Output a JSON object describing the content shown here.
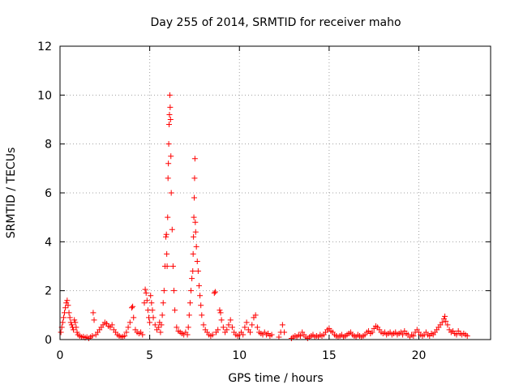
{
  "chart_data": {
    "type": "scatter",
    "title": "Day 255 of 2014, SRMTID for receiver maho",
    "xlabel": "GPS time / hours",
    "ylabel": "SRMTID / TECUs",
    "xlim": [
      0,
      24
    ],
    "ylim": [
      0,
      12
    ],
    "xticks": [
      0,
      5,
      10,
      15,
      20
    ],
    "xtick_labels": [
      "0",
      "5",
      "10",
      "15",
      "20"
    ],
    "yticks": [
      0,
      2,
      4,
      6,
      8,
      10,
      12
    ],
    "ytick_labels": [
      "0",
      "2",
      "4",
      "6",
      "8",
      "10",
      "12"
    ],
    "grid": true,
    "marker": "plus",
    "series": [
      {
        "name": "SRMTID",
        "color": "#ff0000",
        "points": [
          [
            0.05,
            0.3
          ],
          [
            0.1,
            0.5
          ],
          [
            0.15,
            0.7
          ],
          [
            0.2,
            0.9
          ],
          [
            0.25,
            1.1
          ],
          [
            0.3,
            1.3
          ],
          [
            0.35,
            1.5
          ],
          [
            0.4,
            1.6
          ],
          [
            0.45,
            1.4
          ],
          [
            0.5,
            1.1
          ],
          [
            0.55,
            0.9
          ],
          [
            0.6,
            0.7
          ],
          [
            0.65,
            0.6
          ],
          [
            0.7,
            0.5
          ],
          [
            0.75,
            0.4
          ],
          [
            0.8,
            0.8
          ],
          [
            0.85,
            0.7
          ],
          [
            0.9,
            0.5
          ],
          [
            0.95,
            0.3
          ],
          [
            1.0,
            0.2
          ],
          [
            1.1,
            0.15
          ],
          [
            1.2,
            0.1
          ],
          [
            1.3,
            0.12
          ],
          [
            1.4,
            0.08
          ],
          [
            1.5,
            0.1
          ],
          [
            1.6,
            0.05
          ],
          [
            1.7,
            0.1
          ],
          [
            1.8,
            0.15
          ],
          [
            1.85,
            1.1
          ],
          [
            1.9,
            0.8
          ],
          [
            2.0,
            0.2
          ],
          [
            2.1,
            0.3
          ],
          [
            2.2,
            0.4
          ],
          [
            2.3,
            0.5
          ],
          [
            2.4,
            0.6
          ],
          [
            2.5,
            0.7
          ],
          [
            2.6,
            0.65
          ],
          [
            2.7,
            0.55
          ],
          [
            2.8,
            0.5
          ],
          [
            2.9,
            0.6
          ],
          [
            3.0,
            0.4
          ],
          [
            3.1,
            0.3
          ],
          [
            3.2,
            0.2
          ],
          [
            3.3,
            0.15
          ],
          [
            3.4,
            0.1
          ],
          [
            3.5,
            0.12
          ],
          [
            3.6,
            0.15
          ],
          [
            3.7,
            0.3
          ],
          [
            3.8,
            0.5
          ],
          [
            3.9,
            0.7
          ],
          [
            4.0,
            1.3
          ],
          [
            4.05,
            1.35
          ],
          [
            4.1,
            0.9
          ],
          [
            4.2,
            0.4
          ],
          [
            4.3,
            0.3
          ],
          [
            4.4,
            0.25
          ],
          [
            4.5,
            0.3
          ],
          [
            4.6,
            0.2
          ],
          [
            4.7,
            1.5
          ],
          [
            4.75,
            2.05
          ],
          [
            4.8,
            1.9
          ],
          [
            4.85,
            1.6
          ],
          [
            4.9,
            1.2
          ],
          [
            4.95,
            0.9
          ],
          [
            5.0,
            0.7
          ],
          [
            5.05,
            1.8
          ],
          [
            5.1,
            1.5
          ],
          [
            5.15,
            1.2
          ],
          [
            5.2,
            0.9
          ],
          [
            5.3,
            0.6
          ],
          [
            5.4,
            0.4
          ],
          [
            5.5,
            0.5
          ],
          [
            5.55,
            0.7
          ],
          [
            5.6,
            0.3
          ],
          [
            5.65,
            0.6
          ],
          [
            5.7,
            1.0
          ],
          [
            5.75,
            1.5
          ],
          [
            5.8,
            2.0
          ],
          [
            5.85,
            3.0
          ],
          [
            5.9,
            4.2
          ],
          [
            5.93,
            4.3
          ],
          [
            5.95,
            3.5
          ],
          [
            5.97,
            3.0
          ],
          [
            6.0,
            5.0
          ],
          [
            6.02,
            6.6
          ],
          [
            6.04,
            7.2
          ],
          [
            6.06,
            8.0
          ],
          [
            6.08,
            8.8
          ],
          [
            6.1,
            9.2
          ],
          [
            6.12,
            10.0
          ],
          [
            6.14,
            9.5
          ],
          [
            6.16,
            9.0
          ],
          [
            6.18,
            7.5
          ],
          [
            6.2,
            6.0
          ],
          [
            6.25,
            4.5
          ],
          [
            6.3,
            3.0
          ],
          [
            6.35,
            2.0
          ],
          [
            6.4,
            1.2
          ],
          [
            6.5,
            0.5
          ],
          [
            6.6,
            0.35
          ],
          [
            6.7,
            0.3
          ],
          [
            6.8,
            0.25
          ],
          [
            6.9,
            0.2
          ],
          [
            7.0,
            0.3
          ],
          [
            7.1,
            0.2
          ],
          [
            7.15,
            0.5
          ],
          [
            7.2,
            1.0
          ],
          [
            7.25,
            1.5
          ],
          [
            7.3,
            2.0
          ],
          [
            7.35,
            2.5
          ],
          [
            7.4,
            2.8
          ],
          [
            7.42,
            3.5
          ],
          [
            7.44,
            4.2
          ],
          [
            7.46,
            5.0
          ],
          [
            7.48,
            5.8
          ],
          [
            7.5,
            6.6
          ],
          [
            7.52,
            7.4
          ],
          [
            7.54,
            4.8
          ],
          [
            7.56,
            4.4
          ],
          [
            7.6,
            3.8
          ],
          [
            7.65,
            3.2
          ],
          [
            7.7,
            2.8
          ],
          [
            7.75,
            2.2
          ],
          [
            7.8,
            1.8
          ],
          [
            7.85,
            1.4
          ],
          [
            7.9,
            1.0
          ],
          [
            8.0,
            0.6
          ],
          [
            8.1,
            0.4
          ],
          [
            8.2,
            0.3
          ],
          [
            8.3,
            0.2
          ],
          [
            8.4,
            0.15
          ],
          [
            8.5,
            0.2
          ],
          [
            8.6,
            1.9
          ],
          [
            8.65,
            1.95
          ],
          [
            8.7,
            0.3
          ],
          [
            8.8,
            0.4
          ],
          [
            8.9,
            1.2
          ],
          [
            8.95,
            1.1
          ],
          [
            9.0,
            0.8
          ],
          [
            9.1,
            0.5
          ],
          [
            9.2,
            0.3
          ],
          [
            9.3,
            0.4
          ],
          [
            9.4,
            0.6
          ],
          [
            9.5,
            0.8
          ],
          [
            9.6,
            0.5
          ],
          [
            9.7,
            0.3
          ],
          [
            9.8,
            0.2
          ],
          [
            9.9,
            0.15
          ],
          [
            10.0,
            0.2
          ],
          [
            10.1,
            0.3
          ],
          [
            10.2,
            0.2
          ],
          [
            10.3,
            0.5
          ],
          [
            10.4,
            0.7
          ],
          [
            10.5,
            0.4
          ],
          [
            10.6,
            0.3
          ],
          [
            10.7,
            0.6
          ],
          [
            10.8,
            0.9
          ],
          [
            10.9,
            1.0
          ],
          [
            11.0,
            0.5
          ],
          [
            11.1,
            0.3
          ],
          [
            11.2,
            0.25
          ],
          [
            11.3,
            0.2
          ],
          [
            11.4,
            0.3
          ],
          [
            11.5,
            0.2
          ],
          [
            11.6,
            0.25
          ],
          [
            11.7,
            0.15
          ],
          [
            11.8,
            0.2
          ],
          [
            12.2,
            0.1
          ],
          [
            12.3,
            0.3
          ],
          [
            12.4,
            0.6
          ],
          [
            12.5,
            0.3
          ],
          [
            12.9,
            0.05
          ],
          [
            13.0,
            0.1
          ],
          [
            13.1,
            0.15
          ],
          [
            13.2,
            0.1
          ],
          [
            13.3,
            0.2
          ],
          [
            13.4,
            0.15
          ],
          [
            13.5,
            0.3
          ],
          [
            13.6,
            0.2
          ],
          [
            13.7,
            0.1
          ],
          [
            13.8,
            0.05
          ],
          [
            13.9,
            0.1
          ],
          [
            14.0,
            0.15
          ],
          [
            14.1,
            0.2
          ],
          [
            14.2,
            0.1
          ],
          [
            14.3,
            0.15
          ],
          [
            14.4,
            0.1
          ],
          [
            14.5,
            0.2
          ],
          [
            14.6,
            0.15
          ],
          [
            14.7,
            0.2
          ],
          [
            14.8,
            0.3
          ],
          [
            14.9,
            0.4
          ],
          [
            15.0,
            0.45
          ],
          [
            15.1,
            0.35
          ],
          [
            15.2,
            0.3
          ],
          [
            15.3,
            0.2
          ],
          [
            15.4,
            0.15
          ],
          [
            15.5,
            0.1
          ],
          [
            15.6,
            0.15
          ],
          [
            15.7,
            0.2
          ],
          [
            15.8,
            0.1
          ],
          [
            15.9,
            0.15
          ],
          [
            16.0,
            0.2
          ],
          [
            16.1,
            0.25
          ],
          [
            16.2,
            0.3
          ],
          [
            16.3,
            0.2
          ],
          [
            16.4,
            0.15
          ],
          [
            16.5,
            0.1
          ],
          [
            16.6,
            0.2
          ],
          [
            16.7,
            0.15
          ],
          [
            16.8,
            0.1
          ],
          [
            16.9,
            0.15
          ],
          [
            17.0,
            0.2
          ],
          [
            17.1,
            0.3
          ],
          [
            17.2,
            0.35
          ],
          [
            17.3,
            0.25
          ],
          [
            17.4,
            0.3
          ],
          [
            17.5,
            0.45
          ],
          [
            17.6,
            0.55
          ],
          [
            17.7,
            0.5
          ],
          [
            17.8,
            0.4
          ],
          [
            17.9,
            0.3
          ],
          [
            18.0,
            0.25
          ],
          [
            18.1,
            0.3
          ],
          [
            18.2,
            0.2
          ],
          [
            18.3,
            0.25
          ],
          [
            18.4,
            0.3
          ],
          [
            18.5,
            0.2
          ],
          [
            18.6,
            0.25
          ],
          [
            18.7,
            0.3
          ],
          [
            18.8,
            0.2
          ],
          [
            18.9,
            0.25
          ],
          [
            19.0,
            0.3
          ],
          [
            19.1,
            0.2
          ],
          [
            19.2,
            0.35
          ],
          [
            19.3,
            0.25
          ],
          [
            19.4,
            0.2
          ],
          [
            19.5,
            0.1
          ],
          [
            19.6,
            0.2
          ],
          [
            19.7,
            0.15
          ],
          [
            19.8,
            0.3
          ],
          [
            19.9,
            0.4
          ],
          [
            20.0,
            0.3
          ],
          [
            20.1,
            0.2
          ],
          [
            20.2,
            0.15
          ],
          [
            20.3,
            0.2
          ],
          [
            20.4,
            0.3
          ],
          [
            20.5,
            0.2
          ],
          [
            20.6,
            0.15
          ],
          [
            20.7,
            0.25
          ],
          [
            20.8,
            0.2
          ],
          [
            20.9,
            0.3
          ],
          [
            21.0,
            0.4
          ],
          [
            21.1,
            0.5
          ],
          [
            21.2,
            0.6
          ],
          [
            21.3,
            0.7
          ],
          [
            21.4,
            0.85
          ],
          [
            21.45,
            0.95
          ],
          [
            21.5,
            0.75
          ],
          [
            21.6,
            0.6
          ],
          [
            21.7,
            0.4
          ],
          [
            21.8,
            0.3
          ],
          [
            21.9,
            0.35
          ],
          [
            22.0,
            0.25
          ],
          [
            22.1,
            0.2
          ],
          [
            22.2,
            0.35
          ],
          [
            22.3,
            0.25
          ],
          [
            22.4,
            0.2
          ],
          [
            22.5,
            0.25
          ],
          [
            22.6,
            0.2
          ],
          [
            22.7,
            0.15
          ]
        ]
      }
    ]
  }
}
